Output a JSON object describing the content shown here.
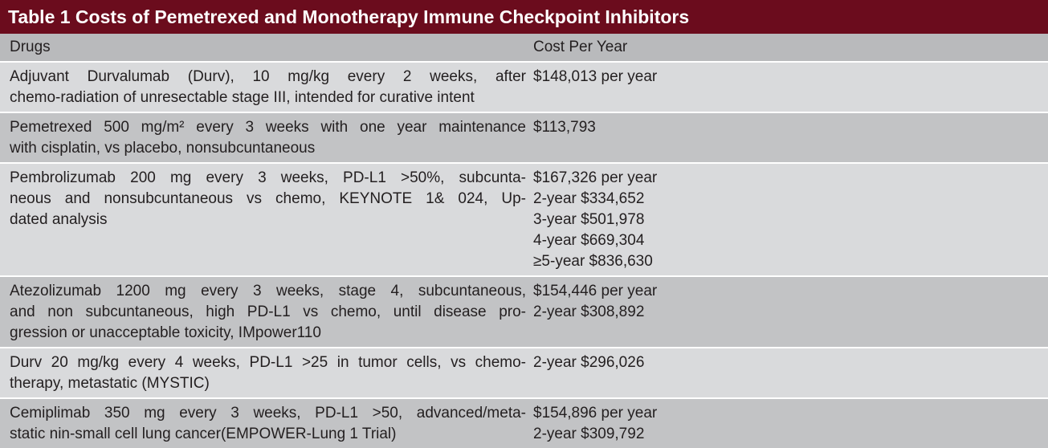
{
  "title": "Table 1 Costs of Pemetrexed and Monotherapy Immune Checkpoint Inhibitors",
  "table": {
    "header": [
      "Drugs",
      "Cost Per Year"
    ],
    "rows": [
      [
        [
          "Adjuvant Durvalumab (Durv), 10 mg/kg  every 2 weeks, after",
          "chemo-radiation of unresectable stage III, intended for curative intent"
        ],
        [
          "$148,013 per year"
        ]
      ],
      [
        [
          "Pemetrexed 500 mg/m²  every 3 weeks with one year maintenance",
          "with cisplatin, vs placebo, nonsubcuntaneous"
        ],
        [
          "$113,793"
        ]
      ],
      [
        [
          "Pembrolizumab 200 mg every 3 weeks, PD-L1 >50%, subcunta-",
          "neous and nonsubcuntaneous vs chemo, KEYNOTE 1& 024, Up-",
          "dated analysis"
        ],
        [
          "$167,326 per year",
          "2-year $334,652",
          "3-year $501,978",
          "4-year $669,304",
          "≥5-year $836,630"
        ]
      ],
      [
        [
          "Atezolizumab 1200 mg  every 3 weeks, stage 4, subcuntaneous,",
          "and non subcuntaneous, high PD-L1 vs chemo, until disease pro-",
          "gression or unacceptable toxicity, IMpower110"
        ],
        [
          "$154,446 per year",
          "2-year $308,892"
        ]
      ],
      [
        [
          "Durv 20 mg/kg every 4 weeks, PD-L1 >25 in tumor cells, vs chemo-",
          "therapy, metastatic (MYSTIC)"
        ],
        [
          "2-year $296,026"
        ]
      ],
      [
        [
          "Cemiplimab 350 mg every 3 weeks, PD-L1 >50, advanced/meta-",
          "static nin-small cell lung cancer(EMPOWER-Lung 1 Trial)"
        ],
        [
          "$154,896 per year",
          "2-year $309,792"
        ]
      ]
    ]
  }
}
